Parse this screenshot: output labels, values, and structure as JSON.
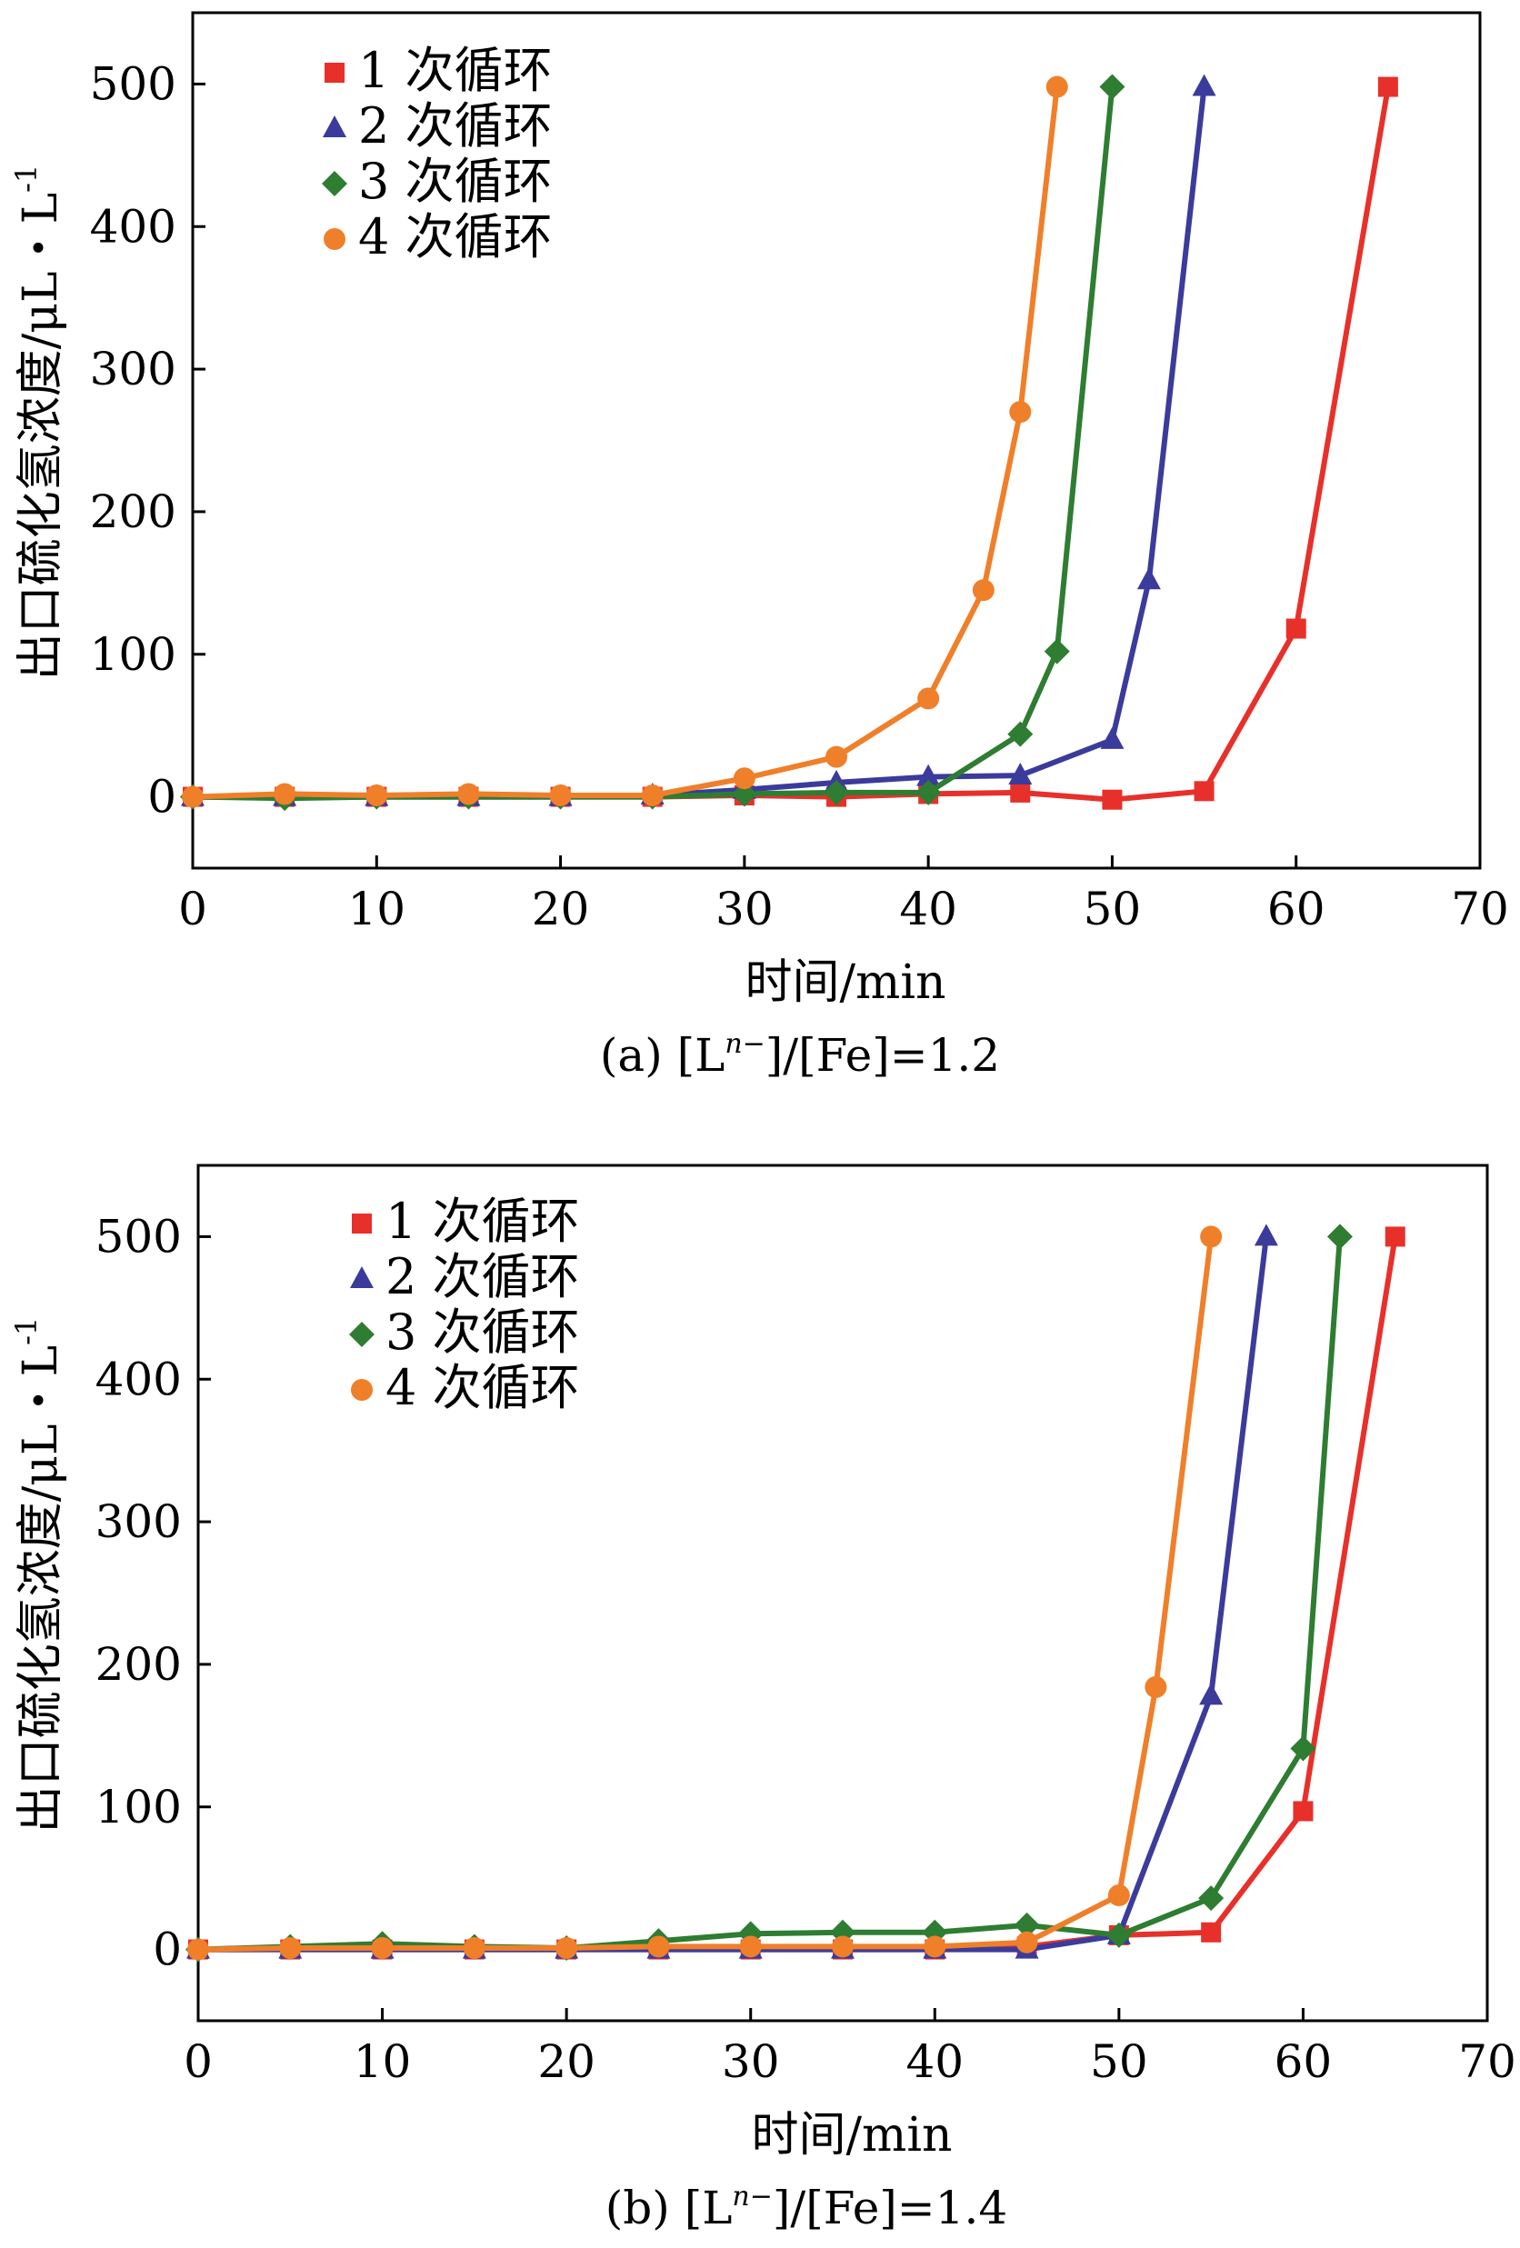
{
  "chart_data": [
    {
      "type": "line",
      "id": "a",
      "caption": "(a) [L",
      "caption_sup": "n−",
      "caption_tail": "]/[Fe]=1.2",
      "xlabel": "时间/min",
      "ylabel": "出口硫化氢浓度/μL・L",
      "ylabel_sup": "-1",
      "xlim": [
        0,
        70
      ],
      "ylim": [
        -50,
        550
      ],
      "xticks": [
        "0",
        "10",
        "20",
        "30",
        "40",
        "50",
        "60",
        "70"
      ],
      "yticks": [
        "0",
        "100",
        "200",
        "300",
        "400",
        "500"
      ],
      "legend_position": "top-left",
      "series": [
        {
          "name": "1 次循环",
          "color": "#e8302a",
          "marker": "square",
          "x": [
            0,
            5,
            10,
            15,
            20,
            25,
            30,
            35,
            40,
            45,
            50,
            55,
            60,
            65
          ],
          "y": [
            0,
            0,
            0,
            0,
            0,
            0,
            1,
            0,
            2,
            3,
            -2,
            4,
            118,
            498
          ]
        },
        {
          "name": "2 次循环",
          "color": "#3b3b9c",
          "marker": "triangle",
          "x": [
            0,
            5,
            10,
            15,
            20,
            25,
            30,
            35,
            40,
            45,
            50,
            52,
            55
          ],
          "y": [
            0,
            0,
            0,
            0,
            0,
            1,
            5,
            10,
            14,
            15,
            40,
            152,
            498
          ]
        },
        {
          "name": "3 次循环",
          "color": "#2e7d32",
          "marker": "diamond",
          "x": [
            0,
            5,
            10,
            15,
            20,
            25,
            30,
            35,
            40,
            45,
            47,
            50
          ],
          "y": [
            0,
            -1,
            0,
            0,
            0,
            0,
            2,
            3,
            3,
            44,
            102,
            498
          ]
        },
        {
          "name": "4 次循环",
          "color": "#f07f2a",
          "marker": "circle",
          "x": [
            0,
            5,
            10,
            15,
            20,
            25,
            30,
            35,
            40,
            43,
            45,
            47
          ],
          "y": [
            0,
            2,
            1,
            2,
            1,
            1,
            13,
            28,
            69,
            145,
            270,
            498
          ]
        }
      ]
    },
    {
      "type": "line",
      "id": "b",
      "caption": "(b) [L",
      "caption_sup": "n−",
      "caption_tail": "]/[Fe]=1.4",
      "xlabel": "时间/min",
      "ylabel": "出口硫化氢浓度/μL・L",
      "ylabel_sup": "-1",
      "xlim": [
        0,
        70
      ],
      "ylim": [
        -50,
        550
      ],
      "xticks": [
        "0",
        "10",
        "20",
        "30",
        "40",
        "50",
        "60",
        "70"
      ],
      "yticks": [
        "0",
        "100",
        "200",
        "300",
        "400",
        "500"
      ],
      "legend_position": "top-left",
      "series": [
        {
          "name": "1 次循环",
          "color": "#e8302a",
          "marker": "square",
          "x": [
            0,
            5,
            10,
            15,
            20,
            25,
            30,
            35,
            40,
            45,
            50,
            55,
            60,
            65
          ],
          "y": [
            0,
            0,
            0,
            0,
            0,
            0,
            0,
            0,
            0,
            2,
            10,
            12,
            97,
            500
          ]
        },
        {
          "name": "2 次循环",
          "color": "#3b3b9c",
          "marker": "triangle",
          "x": [
            0,
            5,
            10,
            15,
            20,
            25,
            30,
            35,
            40,
            45,
            50,
            55,
            58
          ],
          "y": [
            0,
            0,
            0,
            0,
            0,
            0,
            0,
            0,
            0,
            0,
            10,
            178,
            500
          ]
        },
        {
          "name": "3 次循环",
          "color": "#2e7d32",
          "marker": "diamond",
          "x": [
            0,
            5,
            10,
            15,
            20,
            25,
            30,
            35,
            40,
            45,
            50,
            55,
            60,
            62
          ],
          "y": [
            0,
            2,
            4,
            2,
            1,
            6,
            11,
            12,
            12,
            17,
            10,
            36,
            141,
            500
          ]
        },
        {
          "name": "4 次循环",
          "color": "#f07f2a",
          "marker": "circle",
          "x": [
            0,
            5,
            10,
            15,
            20,
            25,
            30,
            35,
            40,
            45,
            50,
            52,
            55
          ],
          "y": [
            0,
            1,
            1,
            1,
            1,
            2,
            2,
            2,
            2,
            5,
            38,
            184,
            500
          ]
        }
      ]
    }
  ]
}
